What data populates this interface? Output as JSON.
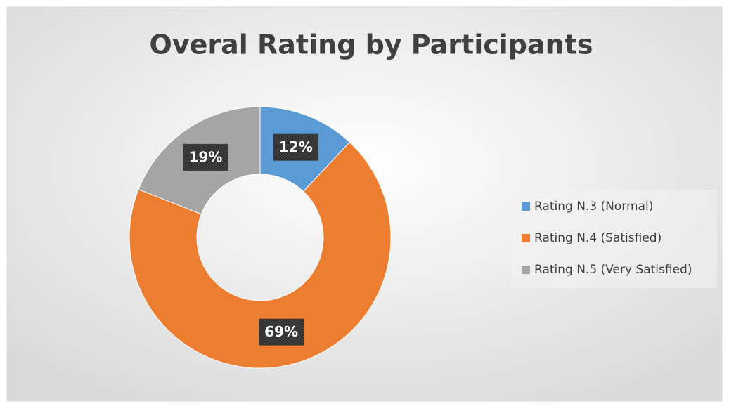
{
  "chart_data": {
    "type": "donut",
    "title": "Overal Rating by Participants",
    "categories": [
      "Rating N.3 (Normal)",
      "Rating N.4 (Satisfied)",
      "Rating N.5 (Very Satisfied)"
    ],
    "values": [
      12,
      69,
      19
    ],
    "value_labels": [
      "12%",
      "69%",
      "19%"
    ],
    "colors": [
      "#5b9bd5",
      "#ed7d31",
      "#a5a5a5"
    ],
    "legend": "right"
  }
}
